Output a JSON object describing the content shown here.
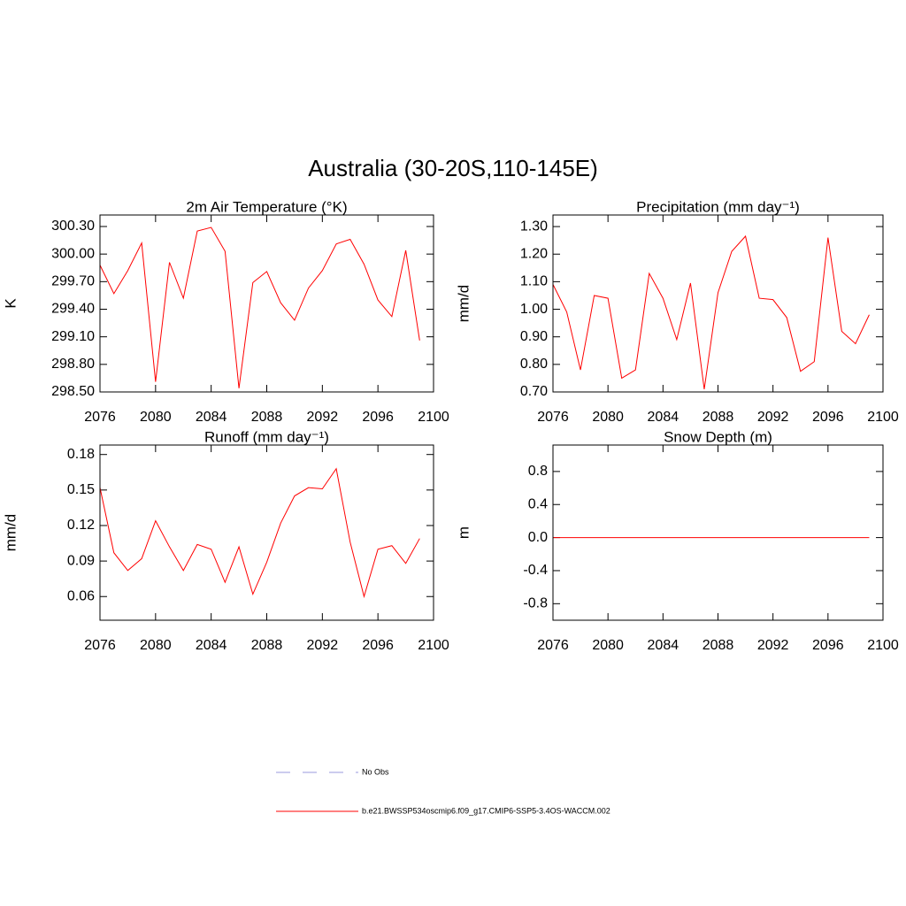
{
  "title": "Australia (30-20S,110-145E)",
  "chart_data": [
    {
      "type": "line",
      "title": "2m Air Temperature (°K)",
      "ylabel": "K",
      "x": [
        2076,
        2077,
        2078,
        2079,
        2080,
        2081,
        2082,
        2083,
        2084,
        2085,
        2086,
        2087,
        2088,
        2089,
        2090,
        2091,
        2092,
        2093,
        2094,
        2095,
        2096,
        2097,
        2098,
        2099
      ],
      "values": [
        299.88,
        299.57,
        299.82,
        300.12,
        298.61,
        299.91,
        299.52,
        300.25,
        300.29,
        300.03,
        298.54,
        299.69,
        299.81,
        299.47,
        299.28,
        299.63,
        299.82,
        300.11,
        300.16,
        299.89,
        299.5,
        299.32,
        300.04,
        299.06
      ],
      "color": "#ff0000",
      "xlim": [
        2076,
        2100
      ],
      "xticks": [
        2076,
        2080,
        2084,
        2088,
        2092,
        2096,
        2100
      ],
      "ylim": [
        298.5,
        300.425
      ],
      "yticks": [
        {
          "value": 298.5,
          "label": "298.50"
        },
        {
          "value": 298.8,
          "label": "298.80"
        },
        {
          "value": 299.1,
          "label": "299.10"
        },
        {
          "value": 299.4,
          "label": "299.40"
        },
        {
          "value": 299.7,
          "label": "299.70"
        },
        {
          "value": 300.0,
          "label": "300.00"
        },
        {
          "value": 300.3,
          "label": "300.30"
        }
      ]
    },
    {
      "type": "line",
      "title": "Precipitation (mm day⁻¹)",
      "ylabel": "mm/d",
      "x": [
        2076,
        2077,
        2078,
        2079,
        2080,
        2081,
        2082,
        2083,
        2084,
        2085,
        2086,
        2087,
        2088,
        2089,
        2090,
        2091,
        2092,
        2093,
        2094,
        2095,
        2096,
        2097,
        2098,
        2099
      ],
      "values": [
        1.09,
        0.99,
        0.78,
        1.05,
        1.04,
        0.75,
        0.78,
        1.13,
        1.04,
        0.89,
        1.095,
        0.71,
        1.06,
        1.21,
        1.265,
        1.04,
        1.035,
        0.97,
        0.775,
        0.81,
        1.26,
        0.92,
        0.875,
        0.98
      ],
      "color": "#ff0000",
      "xlim": [
        2076,
        2100
      ],
      "xticks": [
        2076,
        2080,
        2084,
        2088,
        2092,
        2096,
        2100
      ],
      "ylim": [
        0.7,
        1.342
      ],
      "yticks": [
        {
          "value": 0.7,
          "label": "0.70"
        },
        {
          "value": 0.8,
          "label": "0.80"
        },
        {
          "value": 0.9,
          "label": "0.90"
        },
        {
          "value": 1.0,
          "label": "1.00"
        },
        {
          "value": 1.1,
          "label": "1.10"
        },
        {
          "value": 1.2,
          "label": "1.20"
        },
        {
          "value": 1.3,
          "label": "1.30"
        }
      ]
    },
    {
      "type": "line",
      "title": "Runoff (mm day⁻¹)",
      "ylabel": "mm/d",
      "x": [
        2076,
        2077,
        2078,
        2079,
        2080,
        2081,
        2082,
        2083,
        2084,
        2085,
        2086,
        2087,
        2088,
        2089,
        2090,
        2091,
        2092,
        2093,
        2094,
        2095,
        2096,
        2097,
        2098,
        2099
      ],
      "values": [
        0.152,
        0.097,
        0.082,
        0.092,
        0.124,
        0.102,
        0.082,
        0.104,
        0.1,
        0.072,
        0.102,
        0.062,
        0.089,
        0.122,
        0.145,
        0.152,
        0.151,
        0.168,
        0.106,
        0.06,
        0.1,
        0.103,
        0.088,
        0.109
      ],
      "color": "#ff0000",
      "xlim": [
        2076,
        2100
      ],
      "xticks": [
        2076,
        2080,
        2084,
        2088,
        2092,
        2096,
        2100
      ],
      "ylim": [
        0.04,
        0.188
      ],
      "yticks": [
        0.06,
        0.09,
        0.12,
        0.15,
        0.18
      ]
    },
    {
      "type": "line",
      "title": "Snow Depth (m)",
      "ylabel": "m",
      "x": [
        2076,
        2077,
        2078,
        2079,
        2080,
        2081,
        2082,
        2083,
        2084,
        2085,
        2086,
        2087,
        2088,
        2089,
        2090,
        2091,
        2092,
        2093,
        2094,
        2095,
        2096,
        2097,
        2098,
        2099
      ],
      "values": [
        0,
        0,
        0,
        0,
        0,
        0,
        0,
        0,
        0,
        0,
        0,
        0,
        0,
        0,
        0,
        0,
        0,
        0,
        0,
        0,
        0,
        0,
        0,
        0
      ],
      "color": "#ff0000",
      "xlim": [
        2076,
        2100
      ],
      "xticks": [
        2076,
        2080,
        2084,
        2088,
        2092,
        2096,
        2100
      ],
      "ylim": [
        -1.0,
        1.12
      ],
      "yticks": [
        {
          "value": -0.8,
          "label": "-0.8"
        },
        {
          "value": -0.4,
          "label": "-0.4"
        },
        {
          "value": 0,
          "label": "0.0"
        },
        {
          "value": 0.4,
          "label": "0.4"
        },
        {
          "value": 0.8,
          "label": "0.8"
        }
      ]
    }
  ],
  "legend": [
    {
      "name": "No Obs",
      "color": "#9999dd",
      "dash": true
    },
    {
      "name": "b.e21.BWSSP534oscmip6.f09_g17.CMIP6-SSP5-3.4OS-WACCM.002",
      "color": "#ff0000",
      "dash": false
    }
  ]
}
